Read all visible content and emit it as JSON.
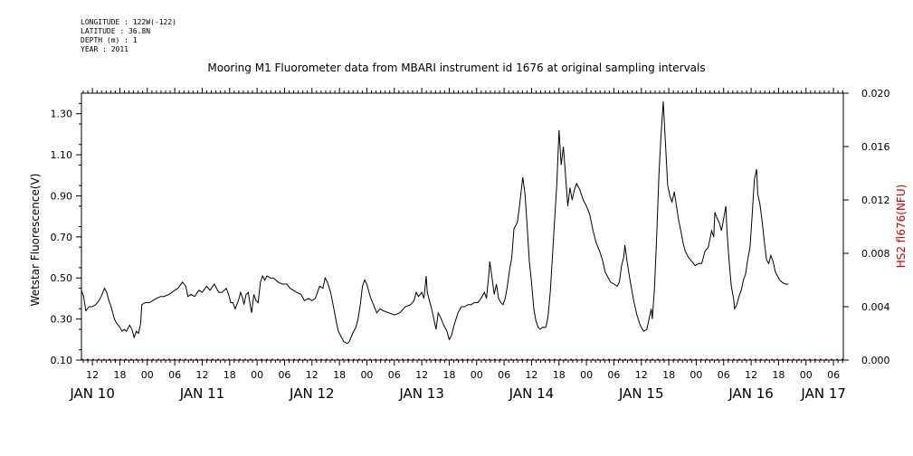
{
  "header": {
    "longitude": "LONGITUDE : 122W(-122)",
    "latitude": "LATITUDE : 36.8N",
    "depth": "DEPTH (m) : 1",
    "year": "YEAR : 2011"
  },
  "chart_data": {
    "type": "line",
    "title": "Mooring M1 Fluorometer data from MBARI instrument id 1676 at original sampling intervals",
    "ylabel": "Wetstar Fluorescence(V)",
    "y2label": "HS2 fl676(NFU)",
    "ylim": [
      0.1,
      1.4
    ],
    "y2lim": [
      0.0,
      0.02
    ],
    "xlim": [
      10.4,
      17.34
    ],
    "yticks": [
      "0.10",
      "0.30",
      "0.50",
      "0.70",
      "0.90",
      "1.10",
      "1.30"
    ],
    "y2ticks": [
      "0.000",
      "0.004",
      "0.008",
      "0.012",
      "0.016",
      "0.020"
    ],
    "hour_ticks": [
      {
        "x": 10.5,
        "label": "12"
      },
      {
        "x": 10.75,
        "label": "18"
      },
      {
        "x": 11.0,
        "label": "00"
      },
      {
        "x": 11.25,
        "label": "06"
      },
      {
        "x": 11.5,
        "label": "12"
      },
      {
        "x": 11.75,
        "label": "18"
      },
      {
        "x": 12.0,
        "label": "00"
      },
      {
        "x": 12.25,
        "label": "06"
      },
      {
        "x": 12.5,
        "label": "12"
      },
      {
        "x": 12.75,
        "label": "18"
      },
      {
        "x": 13.0,
        "label": "00"
      },
      {
        "x": 13.25,
        "label": "06"
      },
      {
        "x": 13.5,
        "label": "12"
      },
      {
        "x": 13.75,
        "label": "18"
      },
      {
        "x": 14.0,
        "label": "00"
      },
      {
        "x": 14.25,
        "label": "06"
      },
      {
        "x": 14.5,
        "label": "12"
      },
      {
        "x": 14.75,
        "label": "18"
      },
      {
        "x": 15.0,
        "label": "00"
      },
      {
        "x": 15.25,
        "label": "06"
      },
      {
        "x": 15.5,
        "label": "12"
      },
      {
        "x": 15.75,
        "label": "18"
      },
      {
        "x": 16.0,
        "label": "00"
      },
      {
        "x": 16.25,
        "label": "06"
      },
      {
        "x": 16.5,
        "label": "12"
      },
      {
        "x": 16.75,
        "label": "18"
      },
      {
        "x": 17.0,
        "label": "00"
      },
      {
        "x": 17.25,
        "label": "06"
      }
    ],
    "date_labels": [
      {
        "x": 10.5,
        "label": "JAN 10"
      },
      {
        "x": 11.5,
        "label": "JAN 11"
      },
      {
        "x": 12.5,
        "label": "JAN 12"
      },
      {
        "x": 13.5,
        "label": "JAN 13"
      },
      {
        "x": 14.5,
        "label": "JAN 14"
      },
      {
        "x": 15.5,
        "label": "JAN 15"
      },
      {
        "x": 16.5,
        "label": "JAN 16"
      },
      {
        "x": 17.16,
        "label": "JAN 17"
      }
    ],
    "series": [
      {
        "color": "#000000",
        "axis": "left",
        "points": [
          [
            10.4,
            0.44
          ],
          [
            10.42,
            0.41
          ],
          [
            10.44,
            0.34
          ],
          [
            10.47,
            0.36
          ],
          [
            10.5,
            0.36
          ],
          [
            10.53,
            0.37
          ],
          [
            10.56,
            0.39
          ],
          [
            10.58,
            0.41
          ],
          [
            10.61,
            0.45
          ],
          [
            10.63,
            0.43
          ],
          [
            10.65,
            0.39
          ],
          [
            10.67,
            0.36
          ],
          [
            10.7,
            0.3
          ],
          [
            10.72,
            0.28
          ],
          [
            10.75,
            0.26
          ],
          [
            10.77,
            0.24
          ],
          [
            10.79,
            0.25
          ],
          [
            10.81,
            0.24
          ],
          [
            10.84,
            0.27
          ],
          [
            10.86,
            0.25
          ],
          [
            10.88,
            0.21
          ],
          [
            10.9,
            0.24
          ],
          [
            10.92,
            0.23
          ],
          [
            10.94,
            0.28
          ],
          [
            10.95,
            0.37
          ],
          [
            10.98,
            0.38
          ],
          [
            11.02,
            0.38
          ],
          [
            11.05,
            0.39
          ],
          [
            11.08,
            0.4
          ],
          [
            11.12,
            0.41
          ],
          [
            11.15,
            0.41
          ],
          [
            11.2,
            0.42
          ],
          [
            11.25,
            0.44
          ],
          [
            11.28,
            0.45
          ],
          [
            11.32,
            0.48
          ],
          [
            11.35,
            0.46
          ],
          [
            11.37,
            0.41
          ],
          [
            11.4,
            0.42
          ],
          [
            11.43,
            0.41
          ],
          [
            11.47,
            0.44
          ],
          [
            11.5,
            0.43
          ],
          [
            11.54,
            0.46
          ],
          [
            11.57,
            0.44
          ],
          [
            11.61,
            0.47
          ],
          [
            11.65,
            0.43
          ],
          [
            11.68,
            0.43
          ],
          [
            11.72,
            0.45
          ],
          [
            11.74,
            0.42
          ],
          [
            11.76,
            0.38
          ],
          [
            11.78,
            0.38
          ],
          [
            11.8,
            0.35
          ],
          [
            11.83,
            0.39
          ],
          [
            11.85,
            0.43
          ],
          [
            11.87,
            0.4
          ],
          [
            11.88,
            0.37
          ],
          [
            11.9,
            0.42
          ],
          [
            11.92,
            0.43
          ],
          [
            11.94,
            0.36
          ],
          [
            11.95,
            0.33
          ],
          [
            11.97,
            0.42
          ],
          [
            11.99,
            0.39
          ],
          [
            12.01,
            0.38
          ],
          [
            12.03,
            0.48
          ],
          [
            12.05,
            0.51
          ],
          [
            12.07,
            0.49
          ],
          [
            12.09,
            0.51
          ],
          [
            12.12,
            0.5
          ],
          [
            12.15,
            0.5
          ],
          [
            12.19,
            0.48
          ],
          [
            12.23,
            0.47
          ],
          [
            12.27,
            0.47
          ],
          [
            12.3,
            0.45
          ],
          [
            12.33,
            0.44
          ],
          [
            12.36,
            0.43
          ],
          [
            12.4,
            0.42
          ],
          [
            12.43,
            0.39
          ],
          [
            12.47,
            0.4
          ],
          [
            12.5,
            0.39
          ],
          [
            12.53,
            0.4
          ],
          [
            12.55,
            0.43
          ],
          [
            12.57,
            0.46
          ],
          [
            12.6,
            0.45
          ],
          [
            12.62,
            0.5
          ],
          [
            12.64,
            0.48
          ],
          [
            12.67,
            0.43
          ],
          [
            12.7,
            0.35
          ],
          [
            12.72,
            0.29
          ],
          [
            12.74,
            0.24
          ],
          [
            12.77,
            0.21
          ],
          [
            12.79,
            0.19
          ],
          [
            12.82,
            0.18
          ],
          [
            12.84,
            0.19
          ],
          [
            12.87,
            0.23
          ],
          [
            12.9,
            0.26
          ],
          [
            12.92,
            0.3
          ],
          [
            12.94,
            0.37
          ],
          [
            12.96,
            0.46
          ],
          [
            12.98,
            0.49
          ],
          [
            13.0,
            0.47
          ],
          [
            13.03,
            0.41
          ],
          [
            13.06,
            0.37
          ],
          [
            13.09,
            0.33
          ],
          [
            13.12,
            0.35
          ],
          [
            13.15,
            0.34
          ],
          [
            13.2,
            0.33
          ],
          [
            13.25,
            0.32
          ],
          [
            13.3,
            0.33
          ],
          [
            13.35,
            0.36
          ],
          [
            13.4,
            0.37
          ],
          [
            13.43,
            0.39
          ],
          [
            13.45,
            0.43
          ],
          [
            13.47,
            0.41
          ],
          [
            13.5,
            0.43
          ],
          [
            13.52,
            0.4
          ],
          [
            13.54,
            0.51
          ],
          [
            13.55,
            0.43
          ],
          [
            13.57,
            0.39
          ],
          [
            13.59,
            0.35
          ],
          [
            13.61,
            0.3
          ],
          [
            13.63,
            0.25
          ],
          [
            13.65,
            0.33
          ],
          [
            13.67,
            0.31
          ],
          [
            13.7,
            0.27
          ],
          [
            13.73,
            0.24
          ],
          [
            13.75,
            0.2
          ],
          [
            13.77,
            0.22
          ],
          [
            13.8,
            0.28
          ],
          [
            13.83,
            0.33
          ],
          [
            13.86,
            0.36
          ],
          [
            13.89,
            0.36
          ],
          [
            13.92,
            0.37
          ],
          [
            13.95,
            0.37
          ],
          [
            13.98,
            0.38
          ],
          [
            14.01,
            0.38
          ],
          [
            14.04,
            0.4
          ],
          [
            14.07,
            0.43
          ],
          [
            14.09,
            0.4
          ],
          [
            14.1,
            0.46
          ],
          [
            14.11,
            0.51
          ],
          [
            14.12,
            0.58
          ],
          [
            14.14,
            0.5
          ],
          [
            14.16,
            0.42
          ],
          [
            14.18,
            0.47
          ],
          [
            14.2,
            0.4
          ],
          [
            14.22,
            0.38
          ],
          [
            14.24,
            0.37
          ],
          [
            14.26,
            0.4
          ],
          [
            14.28,
            0.46
          ],
          [
            14.3,
            0.54
          ],
          [
            14.32,
            0.6
          ],
          [
            14.34,
            0.74
          ],
          [
            14.37,
            0.77
          ],
          [
            14.39,
            0.85
          ],
          [
            14.42,
            0.99
          ],
          [
            14.44,
            0.91
          ],
          [
            14.46,
            0.75
          ],
          [
            14.48,
            0.58
          ],
          [
            14.5,
            0.48
          ],
          [
            14.52,
            0.35
          ],
          [
            14.54,
            0.29
          ],
          [
            14.56,
            0.26
          ],
          [
            14.58,
            0.25
          ],
          [
            14.6,
            0.26
          ],
          [
            14.63,
            0.26
          ],
          [
            14.65,
            0.31
          ],
          [
            14.67,
            0.43
          ],
          [
            14.69,
            0.6
          ],
          [
            14.71,
            0.78
          ],
          [
            14.73,
            0.95
          ],
          [
            14.75,
            1.22
          ],
          [
            14.77,
            1.05
          ],
          [
            14.79,
            1.14
          ],
          [
            14.81,
            1.0
          ],
          [
            14.83,
            0.85
          ],
          [
            14.85,
            0.94
          ],
          [
            14.87,
            0.88
          ],
          [
            14.89,
            0.93
          ],
          [
            14.91,
            0.96
          ],
          [
            14.94,
            0.93
          ],
          [
            14.97,
            0.88
          ],
          [
            15.0,
            0.85
          ],
          [
            15.03,
            0.81
          ],
          [
            15.06,
            0.73
          ],
          [
            15.09,
            0.67
          ],
          [
            15.12,
            0.63
          ],
          [
            15.15,
            0.58
          ],
          [
            15.17,
            0.53
          ],
          [
            15.19,
            0.51
          ],
          [
            15.22,
            0.48
          ],
          [
            15.25,
            0.47
          ],
          [
            15.28,
            0.46
          ],
          [
            15.3,
            0.48
          ],
          [
            15.32,
            0.56
          ],
          [
            15.34,
            0.6
          ],
          [
            15.35,
            0.66
          ],
          [
            15.37,
            0.58
          ],
          [
            15.4,
            0.48
          ],
          [
            15.43,
            0.39
          ],
          [
            15.46,
            0.32
          ],
          [
            15.49,
            0.27
          ],
          [
            15.52,
            0.24
          ],
          [
            15.55,
            0.25
          ],
          [
            15.57,
            0.3
          ],
          [
            15.59,
            0.35
          ],
          [
            15.6,
            0.3
          ],
          [
            15.62,
            0.45
          ],
          [
            15.64,
            0.7
          ],
          [
            15.66,
            1.0
          ],
          [
            15.68,
            1.2
          ],
          [
            15.7,
            1.36
          ],
          [
            15.72,
            1.15
          ],
          [
            15.74,
            0.95
          ],
          [
            15.76,
            0.9
          ],
          [
            15.78,
            0.87
          ],
          [
            15.8,
            0.92
          ],
          [
            15.82,
            0.85
          ],
          [
            15.84,
            0.78
          ],
          [
            15.86,
            0.73
          ],
          [
            15.88,
            0.67
          ],
          [
            15.9,
            0.63
          ],
          [
            15.93,
            0.6
          ],
          [
            15.96,
            0.58
          ],
          [
            15.99,
            0.56
          ],
          [
            16.02,
            0.57
          ],
          [
            16.05,
            0.57
          ],
          [
            16.08,
            0.63
          ],
          [
            16.11,
            0.65
          ],
          [
            16.14,
            0.73
          ],
          [
            16.16,
            0.7
          ],
          [
            16.17,
            0.82
          ],
          [
            16.19,
            0.79
          ],
          [
            16.21,
            0.77
          ],
          [
            16.23,
            0.73
          ],
          [
            16.25,
            0.79
          ],
          [
            16.27,
            0.85
          ],
          [
            16.28,
            0.73
          ],
          [
            16.3,
            0.58
          ],
          [
            16.32,
            0.46
          ],
          [
            16.34,
            0.4
          ],
          [
            16.35,
            0.35
          ],
          [
            16.37,
            0.37
          ],
          [
            16.39,
            0.41
          ],
          [
            16.41,
            0.44
          ],
          [
            16.43,
            0.49
          ],
          [
            16.45,
            0.52
          ],
          [
            16.47,
            0.59
          ],
          [
            16.49,
            0.65
          ],
          [
            16.51,
            0.81
          ],
          [
            16.53,
            0.98
          ],
          [
            16.55,
            1.03
          ],
          [
            16.56,
            0.91
          ],
          [
            16.58,
            0.86
          ],
          [
            16.6,
            0.78
          ],
          [
            16.62,
            0.68
          ],
          [
            16.64,
            0.59
          ],
          [
            16.66,
            0.57
          ],
          [
            16.68,
            0.61
          ],
          [
            16.7,
            0.58
          ],
          [
            16.72,
            0.53
          ],
          [
            16.74,
            0.51
          ],
          [
            16.76,
            0.49
          ],
          [
            16.78,
            0.48
          ],
          [
            16.81,
            0.47
          ],
          [
            16.84,
            0.47
          ]
        ]
      }
    ]
  }
}
